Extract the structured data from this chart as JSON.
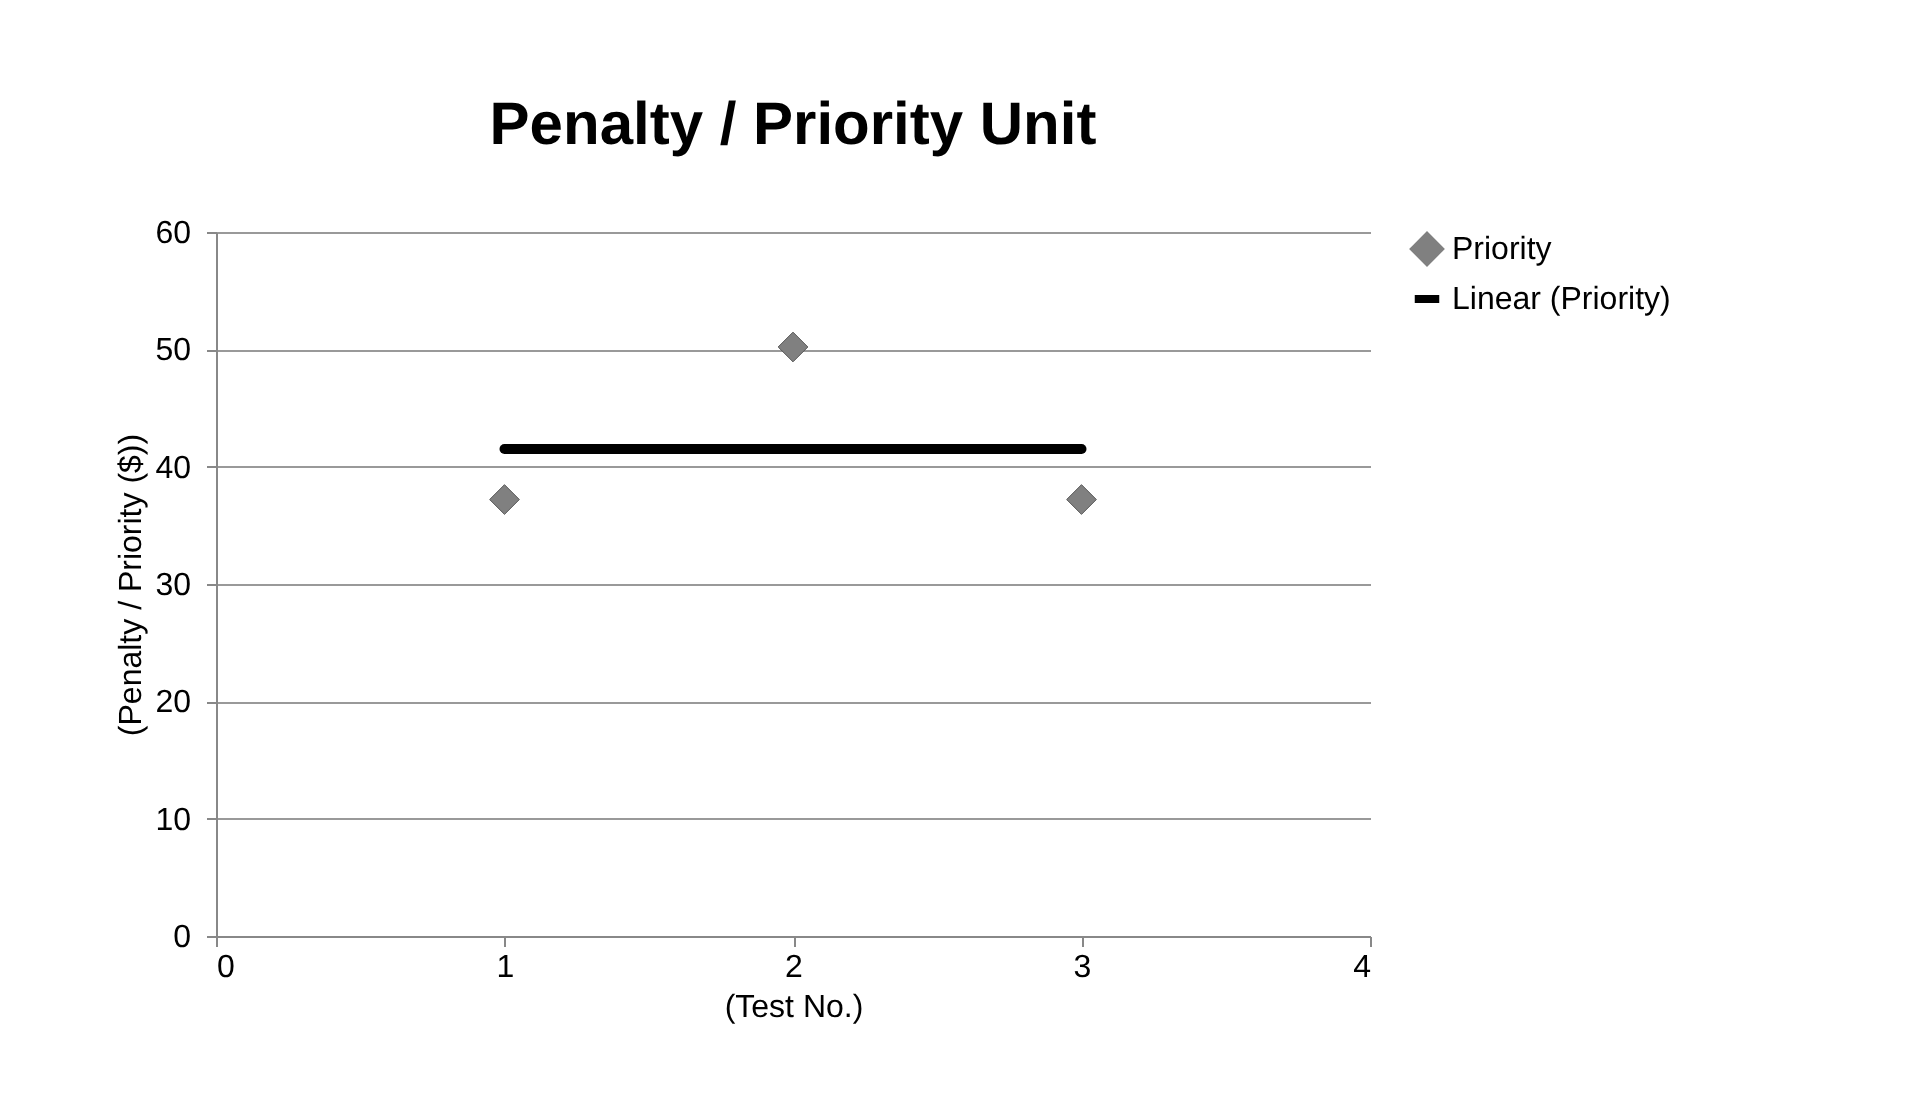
{
  "chart_data": {
    "type": "scatter",
    "title": "Penalty / Priority Unit",
    "xlabel": "(Test No.)",
    "ylabel": "(Penalty / Priority ($))",
    "xlim": [
      0,
      4
    ],
    "xticks": [
      0,
      1,
      2,
      3,
      4
    ],
    "ylim": [
      0,
      60
    ],
    "yticks": [
      0,
      10,
      20,
      30,
      40,
      50,
      60
    ],
    "grid": "y",
    "legend": "right",
    "series": [
      {
        "name": "Priority",
        "type": "scatter",
        "marker": "diamond",
        "color": "#808080",
        "x": [
          1,
          2,
          3
        ],
        "values": [
          37.2,
          50.2,
          37.2
        ]
      },
      {
        "name": "Linear (Priority)",
        "type": "line",
        "color": "#000000",
        "x": [
          1,
          3
        ],
        "values": [
          41.5,
          41.5
        ]
      }
    ]
  }
}
